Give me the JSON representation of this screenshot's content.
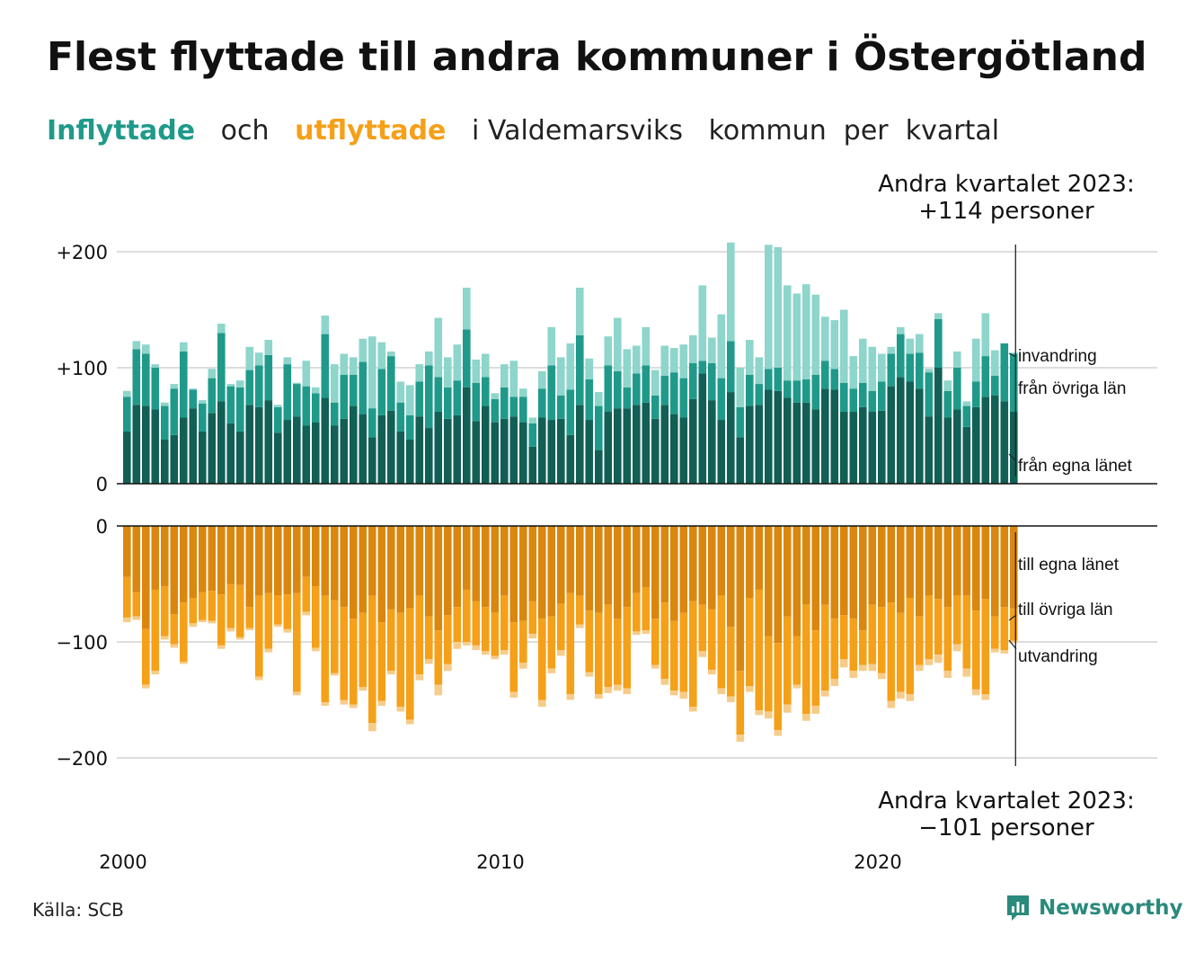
{
  "title": "Flest flyttade till andra kommuner i Östergötland",
  "subtitle": {
    "part1": "Inflyttade",
    "part2": "och",
    "part3": "utflyttade",
    "part4": "i Valdemarsviks",
    "part5": "kommun",
    "part6": "per",
    "part7": "kvartal"
  },
  "note_top": {
    "line1": "Andra kvartalet 2023:",
    "line2": "+114 personer"
  },
  "note_bottom": {
    "line1": "Andra kvartalet 2023:",
    "line2": "−101 personer"
  },
  "source": "Källa: SCB",
  "logo_text": "Newsworthy",
  "colors": {
    "in_own": "#125f55",
    "in_other": "#1f9a8a",
    "in_immigration": "#8ed5cb",
    "out_own": "#d9870f",
    "out_other": "#f5a019",
    "out_emigration": "#f6cc8a",
    "grid": "#dddddd",
    "baseline": "#111111"
  },
  "chart_data": {
    "type": "bar",
    "stacked": true,
    "x_unit": "quarter",
    "x_start": "2000 Q1",
    "x_end": "2023 Q2",
    "x_ticks": [
      "2000",
      "2010",
      "2020"
    ],
    "top_panel": {
      "y_ticks": [
        "+200",
        "+100",
        "0"
      ],
      "ylim": [
        0,
        210
      ],
      "series": [
        {
          "name": "från egna länet",
          "values": [
            45,
            68,
            67,
            64,
            38,
            42,
            57,
            65,
            45,
            61,
            71,
            52,
            45,
            68,
            66,
            72,
            44,
            55,
            58,
            50,
            53,
            74,
            50,
            56,
            67,
            60,
            40,
            59,
            63,
            45,
            38,
            58,
            48,
            62,
            56,
            59,
            83,
            54,
            67,
            53,
            56,
            58,
            53,
            32,
            57,
            55,
            56,
            42,
            68,
            55,
            29,
            62,
            65,
            65,
            68,
            70,
            56,
            68,
            60,
            57,
            73,
            95,
            72,
            55,
            79,
            40,
            67,
            68,
            81,
            80,
            74,
            70,
            70,
            64,
            82,
            81,
            62,
            62,
            66,
            62,
            63,
            84,
            92,
            88,
            82,
            58,
            100,
            57,
            64,
            49,
            66,
            75,
            76,
            71,
            62
          ]
        },
        {
          "name": "från övriga län",
          "values": [
            30,
            48,
            45,
            36,
            29,
            40,
            57,
            16,
            24,
            30,
            59,
            32,
            38,
            30,
            36,
            39,
            22,
            48,
            28,
            34,
            25,
            55,
            20,
            38,
            27,
            45,
            25,
            40,
            47,
            25,
            21,
            30,
            54,
            30,
            27,
            30,
            50,
            33,
            25,
            20,
            27,
            17,
            22,
            20,
            25,
            47,
            20,
            39,
            60,
            35,
            38,
            40,
            32,
            18,
            27,
            32,
            20,
            25,
            36,
            34,
            31,
            11,
            32,
            36,
            44,
            26,
            27,
            18,
            18,
            20,
            15,
            19,
            20,
            30,
            24,
            18,
            25,
            20,
            21,
            18,
            25,
            28,
            37,
            24,
            31,
            38,
            42,
            23,
            36,
            18,
            22,
            35,
            17,
            50,
            50
          ]
        },
        {
          "name": "invandring",
          "values": [
            5,
            7,
            8,
            3,
            3,
            4,
            8,
            1,
            3,
            8,
            8,
            2,
            6,
            20,
            11,
            13,
            2,
            6,
            1,
            22,
            5,
            16,
            33,
            18,
            15,
            20,
            62,
            23,
            4,
            18,
            26,
            15,
            12,
            51,
            26,
            31,
            36,
            20,
            20,
            5,
            20,
            31,
            7,
            5,
            15,
            33,
            33,
            40,
            41,
            18,
            12,
            25,
            46,
            33,
            24,
            33,
            22,
            26,
            21,
            29,
            24,
            65,
            22,
            55,
            85,
            34,
            30,
            23,
            107,
            104,
            82,
            75,
            82,
            69,
            38,
            42,
            63,
            28,
            38,
            38,
            24,
            6,
            6,
            13,
            16,
            3,
            5,
            9,
            14,
            4,
            37,
            37,
            22,
            0,
            1
          ]
        }
      ]
    },
    "bottom_panel": {
      "y_ticks": [
        "0",
        "−100",
        "−200"
      ],
      "ylim": [
        -210,
        0
      ],
      "series": [
        {
          "name": "till egna länet",
          "values": [
            -44,
            -57,
            -89,
            -55,
            -52,
            -76,
            -66,
            -62,
            -57,
            -56,
            -59,
            -50,
            -51,
            -70,
            -60,
            -58,
            -60,
            -59,
            -58,
            -44,
            -52,
            -60,
            -64,
            -70,
            -80,
            -75,
            -60,
            -83,
            -72,
            -75,
            -71,
            -60,
            -78,
            -90,
            -77,
            -70,
            -55,
            -65,
            -70,
            -75,
            -60,
            -83,
            -82,
            -65,
            -80,
            -78,
            -67,
            -58,
            -60,
            -73,
            -75,
            -68,
            -80,
            -70,
            -58,
            -53,
            -80,
            -66,
            -82,
            -75,
            -65,
            -68,
            -72,
            -60,
            -87,
            -125,
            -62,
            -55,
            -95,
            -101,
            -78,
            -95,
            -68,
            -90,
            -68,
            -80,
            -77,
            -80,
            -90,
            -68,
            -70,
            -66,
            -75,
            -62,
            -78,
            -60,
            -63,
            -70,
            -60,
            -60,
            -73,
            -63,
            -78,
            -70,
            -71
          ]
        },
        {
          "name": "till övriga län",
          "values": [
            -35,
            -21,
            -48,
            -70,
            -43,
            -26,
            -51,
            -22,
            -24,
            -26,
            -44,
            -38,
            -45,
            -18,
            -70,
            -48,
            -25,
            -30,
            -85,
            -30,
            -53,
            -92,
            -63,
            -80,
            -74,
            -64,
            -110,
            -68,
            -53,
            -81,
            -96,
            -68,
            -37,
            -47,
            -42,
            -30,
            -45,
            -38,
            -38,
            -37,
            -47,
            -60,
            -36,
            -28,
            -70,
            -45,
            -40,
            -87,
            -25,
            -53,
            -70,
            -71,
            -57,
            -70,
            -33,
            -37,
            -40,
            -66,
            -60,
            -68,
            -91,
            -40,
            -52,
            -80,
            -60,
            -55,
            -76,
            -104,
            -65,
            -75,
            -76,
            -42,
            -94,
            -65,
            -74,
            -52,
            -38,
            -45,
            -30,
            -51,
            -57,
            -85,
            -68,
            -83,
            -42,
            -55,
            -48,
            -55,
            -42,
            -63,
            -68,
            -82,
            -28,
            -37,
            -28
          ]
        },
        {
          "name": "utvandring",
          "values": [
            -4,
            -3,
            -3,
            -3,
            -3,
            -3,
            -2,
            -3,
            -2,
            -2,
            -3,
            -3,
            -2,
            -2,
            -3,
            -3,
            -2,
            -3,
            -3,
            -3,
            -3,
            -3,
            -2,
            -4,
            -3,
            -3,
            -7,
            -4,
            -3,
            -4,
            -4,
            -5,
            -4,
            -9,
            -6,
            -6,
            -3,
            -4,
            -3,
            -3,
            -4,
            -5,
            -5,
            -4,
            -6,
            -4,
            -5,
            -5,
            -3,
            -4,
            -4,
            -5,
            -5,
            -5,
            -3,
            -3,
            -3,
            -5,
            -4,
            -6,
            -4,
            -5,
            -4,
            -5,
            -5,
            -6,
            -5,
            -4,
            -6,
            -5,
            -7,
            -3,
            -6,
            -7,
            -5,
            -6,
            -7,
            -6,
            -5,
            -6,
            -5,
            -6,
            -6,
            -6,
            -5,
            -5,
            -7,
            -6,
            -6,
            -7,
            -5,
            -5,
            -3,
            -3,
            -2
          ]
        }
      ]
    },
    "grid": true
  }
}
